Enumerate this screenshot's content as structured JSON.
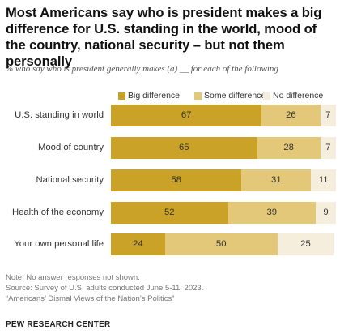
{
  "title": "Most Americans say who is president makes a big difference for U.S. standing in the world, mood of the country, national security – but not them personally",
  "subtitle": "% who say who is president generally makes (a) __ for each of the following",
  "chart_data": {
    "type": "bar",
    "orientation": "horizontal",
    "stacked": true,
    "categories": [
      "U.S. standing in world",
      "Mood of country",
      "National security",
      "Health of the economy",
      "Your own personal life"
    ],
    "series": [
      {
        "name": "Big difference",
        "color": "#c9a227",
        "values": [
          67,
          65,
          58,
          52,
          24
        ]
      },
      {
        "name": "Some difference",
        "color": "#e3c879",
        "values": [
          26,
          28,
          31,
          39,
          50
        ]
      },
      {
        "name": "No difference",
        "color": "#f5eedc",
        "values": [
          7,
          7,
          11,
          9,
          25
        ]
      }
    ],
    "xlim": [
      0,
      100
    ],
    "legend_position": "top"
  },
  "notes": [
    "Note: No answer responses not shown.",
    "Source: Survey of U.S. adults conducted June 5-11, 2023.",
    "“Americans’ Dismal Views of the Nation’s Politics”"
  ],
  "brand": "PEW RESEARCH CENTER"
}
